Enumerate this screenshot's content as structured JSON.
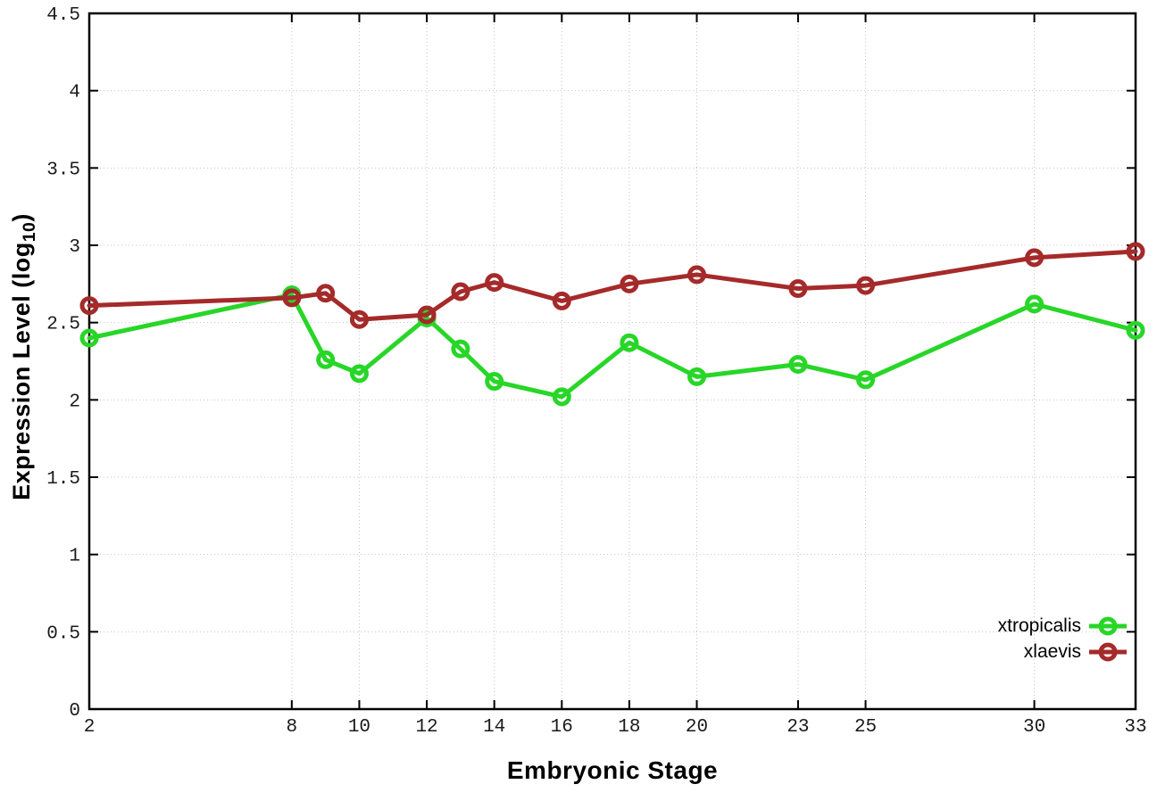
{
  "chart_data": {
    "type": "line",
    "title": "",
    "xlabel": "Embryonic Stage",
    "ylabel_prefix": "Expression Level (log",
    "ylabel_sub": "10",
    "ylabel_suffix": ")",
    "x": [
      2,
      8,
      9,
      10,
      12,
      13,
      14,
      16,
      18,
      20,
      23,
      25,
      30,
      33
    ],
    "series": [
      {
        "name": "xtropicalis",
        "color": "#28d628",
        "values": [
          2.4,
          2.68,
          2.26,
          2.17,
          2.53,
          2.33,
          2.12,
          2.02,
          2.37,
          2.15,
          2.23,
          2.13,
          2.62,
          2.45
        ]
      },
      {
        "name": "xlaevis",
        "color": "#a52a2a",
        "values": [
          2.61,
          2.66,
          2.69,
          2.52,
          2.55,
          2.7,
          2.76,
          2.64,
          2.75,
          2.81,
          2.72,
          2.74,
          2.92,
          2.96
        ]
      }
    ],
    "xticks": [
      2,
      8,
      10,
      12,
      14,
      16,
      18,
      20,
      23,
      25,
      30,
      33
    ],
    "yticks": [
      0,
      0.5,
      1,
      1.5,
      2,
      2.5,
      3,
      3.5,
      4,
      4.5
    ],
    "xlim": [
      2,
      33
    ],
    "ylim": [
      0,
      4.5
    ],
    "grid": true,
    "legend_position": "bottom-right",
    "colors": {
      "background": "#ffffff",
      "axis": "#000000",
      "grid": "#c4c4c4",
      "tick_label": "#1a1a1a"
    }
  }
}
